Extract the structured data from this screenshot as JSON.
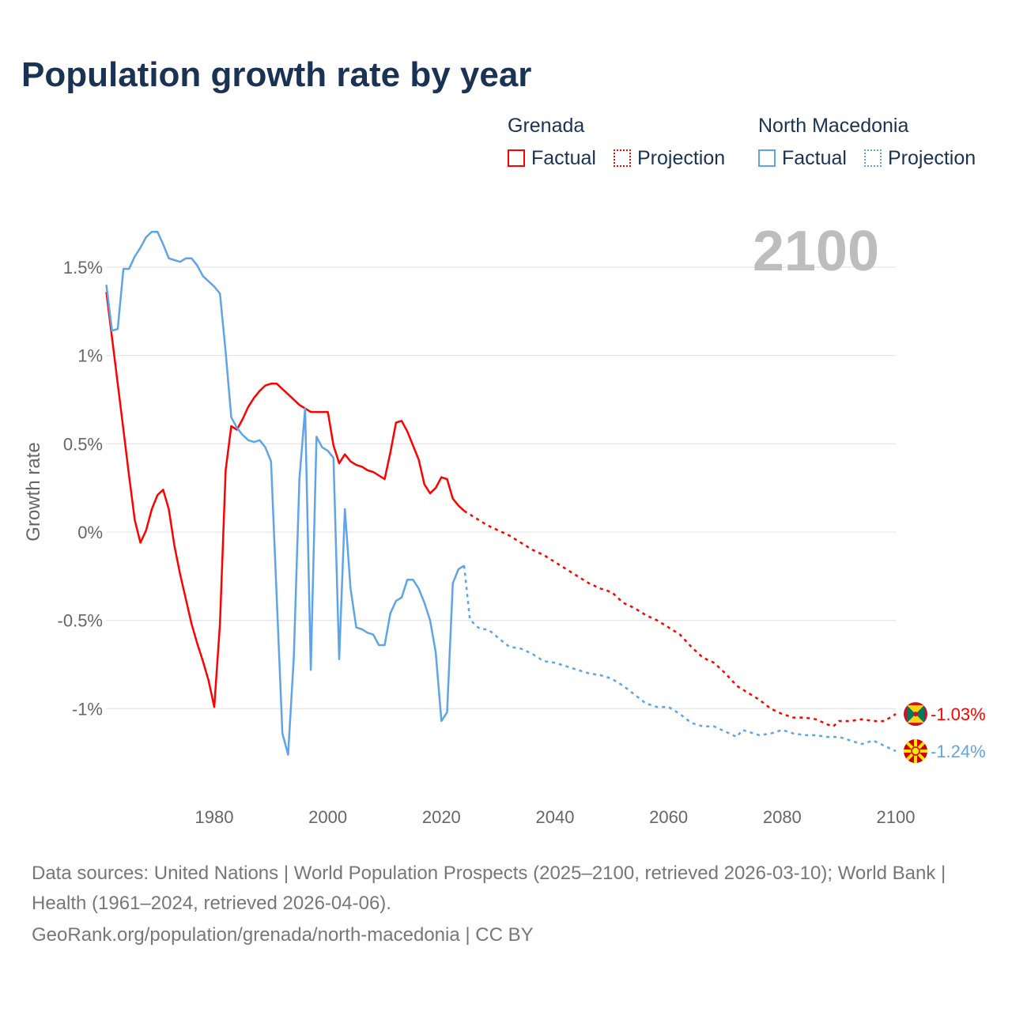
{
  "title": "Population growth rate by year",
  "legend": {
    "groups": [
      {
        "name": "Grenada",
        "factual": "Factual",
        "projection": "Projection",
        "color": "#ff0000"
      },
      {
        "name": "North Macedonia",
        "factual": "Factual",
        "projection": "Projection",
        "color": "#5ea5e8"
      }
    ]
  },
  "year_label": "2100",
  "chart_data": {
    "type": "line",
    "title": "Population growth rate by year",
    "xlabel": "",
    "ylabel": "Growth rate",
    "xlim": [
      1961,
      2100
    ],
    "ylim": [
      -1.45,
      1.8
    ],
    "x_ticks": [
      1980,
      2000,
      2020,
      2040,
      2060,
      2080,
      2100
    ],
    "x_tick_labels": [
      "1980",
      "2000",
      "2020",
      "2040",
      "2060",
      "2080",
      "2100"
    ],
    "y_ticks": [
      1.5,
      1,
      0.5,
      0,
      -0.5,
      -1
    ],
    "y_tick_labels": [
      "1.5%",
      "1%",
      "0.5%",
      "0%",
      "-0.5%",
      "-1%"
    ],
    "grid": true,
    "series": [
      {
        "name": "Grenada",
        "color": "#ff0000",
        "end_label": "-1.03%",
        "factual": {
          "x": [
            1961,
            1962,
            1963,
            1964,
            1965,
            1966,
            1967,
            1968,
            1969,
            1970,
            1971,
            1972,
            1973,
            1974,
            1975,
            1976,
            1977,
            1978,
            1979,
            1980,
            1981,
            1982,
            1983,
            1984,
            1985,
            1986,
            1987,
            1988,
            1989,
            1990,
            1991,
            1992,
            1993,
            1994,
            1995,
            1996,
            1997,
            1998,
            1999,
            2000,
            2001,
            2002,
            2003,
            2004,
            2005,
            2006,
            2007,
            2008,
            2009,
            2010,
            2011,
            2012,
            2013,
            2014,
            2015,
            2016,
            2017,
            2018,
            2019,
            2020,
            2021,
            2022,
            2023,
            2024
          ],
          "y": [
            1.36,
            1.1,
            0.84,
            0.58,
            0.32,
            0.07,
            -0.06,
            0.01,
            0.13,
            0.21,
            0.24,
            0.13,
            -0.08,
            -0.24,
            -0.38,
            -0.52,
            -0.63,
            -0.73,
            -0.84,
            -0.99,
            -0.52,
            0.35,
            0.6,
            0.58,
            0.64,
            0.71,
            0.76,
            0.8,
            0.83,
            0.84,
            0.84,
            0.81,
            0.78,
            0.75,
            0.72,
            0.7,
            0.68,
            0.68,
            0.68,
            0.68,
            0.49,
            0.39,
            0.44,
            0.4,
            0.38,
            0.37,
            0.35,
            0.34,
            0.32,
            0.3,
            0.45,
            0.62,
            0.63,
            0.57,
            0.49,
            0.41,
            0.27,
            0.22,
            0.25,
            0.31,
            0.3,
            0.19,
            0.15,
            0.12
          ]
        },
        "projection": {
          "x": [
            2024,
            2026,
            2028,
            2030,
            2032,
            2034,
            2036,
            2038,
            2040,
            2042,
            2044,
            2046,
            2048,
            2050,
            2052,
            2054,
            2056,
            2058,
            2060,
            2062,
            2064,
            2066,
            2068,
            2070,
            2072,
            2074,
            2076,
            2078,
            2080,
            2082,
            2084,
            2086,
            2088,
            2089,
            2090,
            2092,
            2094,
            2096,
            2098,
            2100
          ],
          "y": [
            0.12,
            0.08,
            0.04,
            0.01,
            -0.02,
            -0.06,
            -0.1,
            -0.13,
            -0.17,
            -0.21,
            -0.25,
            -0.29,
            -0.32,
            -0.34,
            -0.4,
            -0.43,
            -0.47,
            -0.5,
            -0.54,
            -0.58,
            -0.65,
            -0.71,
            -0.74,
            -0.8,
            -0.87,
            -0.91,
            -0.95,
            -1.0,
            -1.03,
            -1.05,
            -1.05,
            -1.06,
            -1.09,
            -1.1,
            -1.07,
            -1.07,
            -1.06,
            -1.07,
            -1.07,
            -1.03
          ]
        }
      },
      {
        "name": "North Macedonia",
        "color": "#5ea5e8",
        "end_label": "-1.24%",
        "factual": {
          "x": [
            1961,
            1962,
            1963,
            1964,
            1965,
            1966,
            1967,
            1968,
            1969,
            1970,
            1971,
            1972,
            1973,
            1974,
            1975,
            1976,
            1977,
            1978,
            1979,
            1980,
            1981,
            1982,
            1983,
            1984,
            1985,
            1986,
            1987,
            1988,
            1989,
            1990,
            1991,
            1992,
            1993,
            1994,
            1995,
            1996,
            1997,
            1998,
            1999,
            2000,
            2001,
            2002,
            2003,
            2004,
            2005,
            2006,
            2007,
            2008,
            2009,
            2010,
            2011,
            2012,
            2013,
            2014,
            2015,
            2016,
            2017,
            2018,
            2019,
            2020,
            2021,
            2022,
            2023,
            2024
          ],
          "y": [
            1.4,
            1.14,
            1.15,
            1.49,
            1.49,
            1.56,
            1.61,
            1.67,
            1.7,
            1.7,
            1.63,
            1.55,
            1.54,
            1.53,
            1.55,
            1.55,
            1.51,
            1.45,
            1.42,
            1.39,
            1.35,
            1.02,
            0.65,
            0.59,
            0.55,
            0.52,
            0.51,
            0.52,
            0.48,
            0.4,
            -0.37,
            -1.14,
            -1.26,
            -0.71,
            0.3,
            0.7,
            -0.78,
            0.54,
            0.48,
            0.46,
            0.42,
            -0.72,
            0.13,
            -0.32,
            -0.54,
            -0.55,
            -0.57,
            -0.58,
            -0.64,
            -0.64,
            -0.46,
            -0.39,
            -0.37,
            -0.27,
            -0.27,
            -0.32,
            -0.4,
            -0.5,
            -0.68,
            -1.07,
            -1.02,
            -0.29,
            -0.21,
            -0.19
          ]
        },
        "projection": {
          "x": [
            2024,
            2025,
            2026,
            2027,
            2028,
            2029,
            2030,
            2032,
            2034,
            2036,
            2038,
            2040,
            2042,
            2044,
            2046,
            2048,
            2050,
            2052,
            2054,
            2056,
            2058,
            2060,
            2062,
            2064,
            2066,
            2068,
            2070,
            2072,
            2073,
            2076,
            2078,
            2080,
            2082,
            2084,
            2086,
            2088,
            2090,
            2092,
            2094,
            2096,
            2098,
            2100
          ],
          "y": [
            -0.19,
            -0.49,
            -0.53,
            -0.55,
            -0.55,
            -0.57,
            -0.6,
            -0.65,
            -0.66,
            -0.69,
            -0.73,
            -0.74,
            -0.76,
            -0.78,
            -0.8,
            -0.81,
            -0.83,
            -0.87,
            -0.92,
            -0.97,
            -0.99,
            -0.99,
            -1.03,
            -1.08,
            -1.1,
            -1.1,
            -1.13,
            -1.16,
            -1.12,
            -1.15,
            -1.14,
            -1.12,
            -1.14,
            -1.15,
            -1.15,
            -1.16,
            -1.16,
            -1.18,
            -1.2,
            -1.18,
            -1.21,
            -1.24
          ]
        }
      }
    ]
  },
  "footer": {
    "sources": "Data sources: United Nations | World Population Prospects (2025–2100, retrieved 2026-03-10); World Bank | Health (1961–2024, retrieved 2026-04-06).",
    "link": "GeoRank.org/population/grenada/north-macedonia | CC BY"
  }
}
